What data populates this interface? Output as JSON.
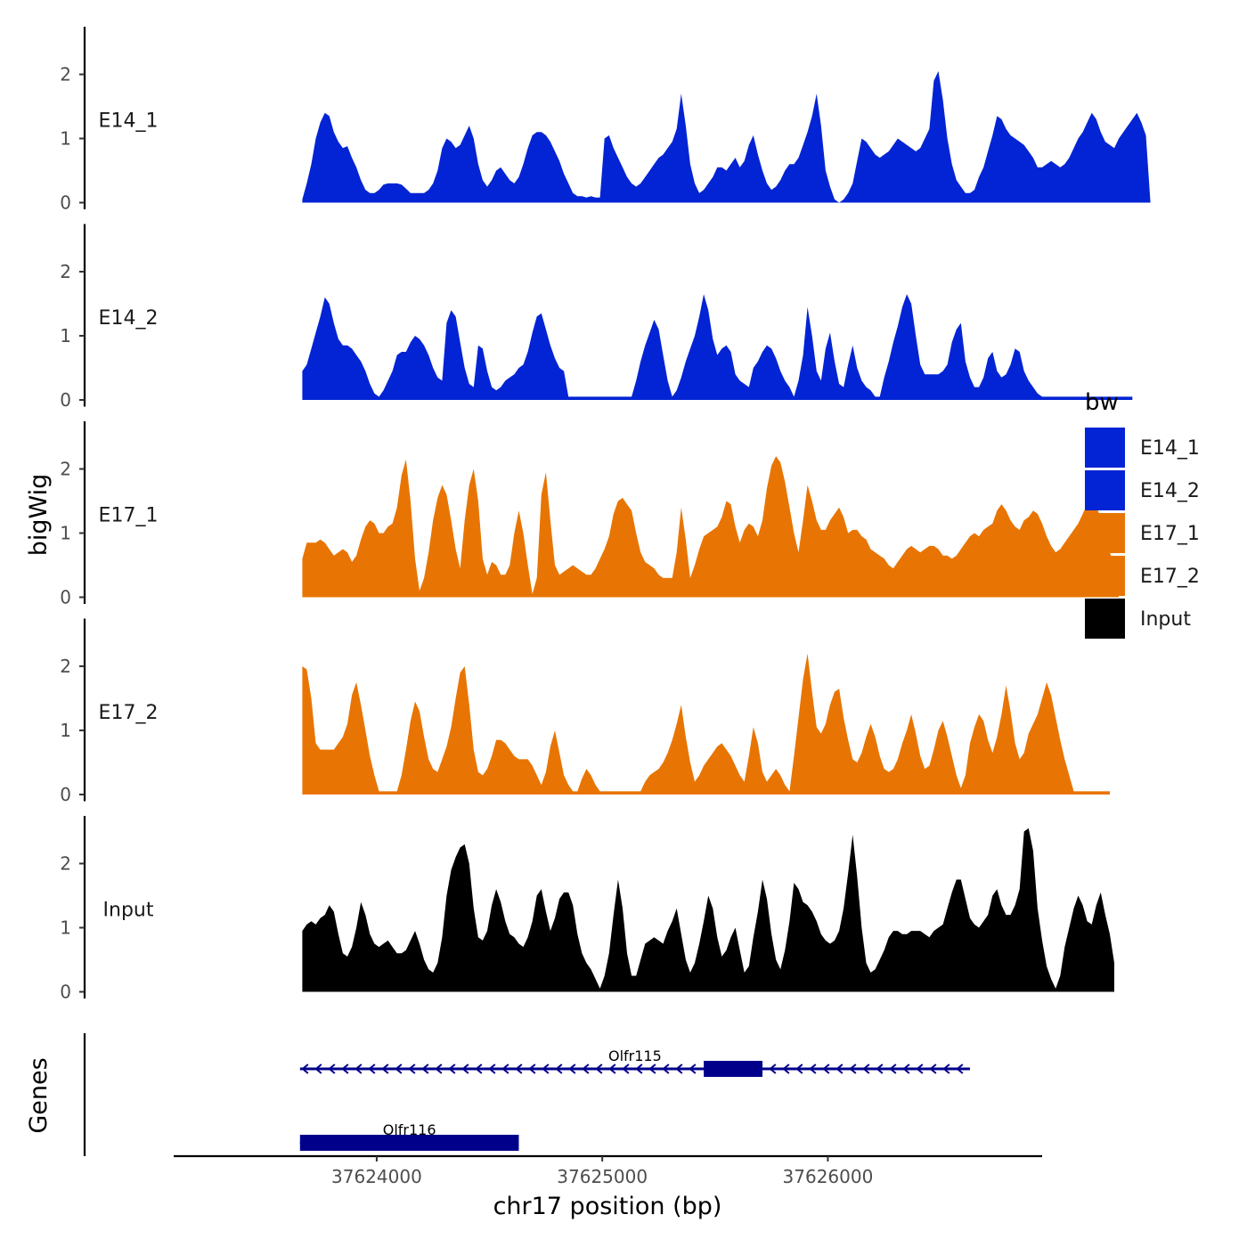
{
  "chart_data": {
    "type": "area",
    "title": "",
    "ylabel": "bigWig",
    "xlabel": "chr17 position (bp)",
    "xlim": [
      37623100,
      37626950
    ],
    "x_start": 37623670,
    "x_step": 20,
    "ylim": [
      0,
      2.7
    ],
    "yticks": [
      0,
      1,
      2
    ],
    "xticks": [
      37624000,
      37625000,
      37626000
    ],
    "xtick_labels": [
      "37624000",
      "37625000",
      "37626000"
    ],
    "legend": {
      "title": "bw",
      "position": "right",
      "entries": [
        {
          "label": "E14_1",
          "color": "#0324d4"
        },
        {
          "label": "E14_2",
          "color": "#0324d4"
        },
        {
          "label": "E17_1",
          "color": "#e87503"
        },
        {
          "label": "E17_2",
          "color": "#e87503"
        },
        {
          "label": "Input",
          "color": "#000000"
        }
      ]
    },
    "series": [
      {
        "name": "E14_1",
        "color": "#0324d4",
        "values": [
          0.05,
          0.3,
          0.6,
          1.0,
          1.25,
          1.4,
          1.35,
          1.1,
          0.95,
          0.85,
          0.88,
          0.7,
          0.55,
          0.35,
          0.2,
          0.15,
          0.15,
          0.2,
          0.28,
          0.3,
          0.3,
          0.3,
          0.28,
          0.22,
          0.15,
          0.15,
          0.15,
          0.15,
          0.2,
          0.3,
          0.5,
          0.85,
          1.0,
          0.95,
          0.85,
          0.9,
          1.05,
          1.2,
          1.0,
          0.6,
          0.35,
          0.25,
          0.35,
          0.5,
          0.55,
          0.45,
          0.35,
          0.3,
          0.4,
          0.6,
          0.85,
          1.05,
          1.1,
          1.1,
          1.05,
          0.95,
          0.8,
          0.65,
          0.45,
          0.3,
          0.15,
          0.1,
          0.1,
          0.08,
          0.1,
          0.08,
          0.08,
          1.0,
          1.05,
          0.85,
          0.7,
          0.55,
          0.4,
          0.3,
          0.25,
          0.3,
          0.4,
          0.5,
          0.6,
          0.7,
          0.75,
          0.85,
          0.95,
          1.15,
          1.7,
          1.2,
          0.6,
          0.3,
          0.15,
          0.2,
          0.3,
          0.4,
          0.55,
          0.55,
          0.5,
          0.6,
          0.7,
          0.55,
          0.65,
          0.9,
          1.05,
          0.75,
          0.5,
          0.3,
          0.2,
          0.25,
          0.35,
          0.5,
          0.6,
          0.6,
          0.7,
          0.9,
          1.1,
          1.35,
          1.7,
          1.2,
          0.5,
          0.25,
          0.05,
          0.0,
          0.05,
          0.15,
          0.3,
          0.65,
          1.0,
          0.95,
          0.85,
          0.75,
          0.7,
          0.75,
          0.8,
          0.9,
          1.0,
          0.95,
          0.9,
          0.85,
          0.8,
          0.85,
          1.0,
          1.15,
          1.9,
          2.05,
          1.6,
          1.0,
          0.6,
          0.35,
          0.25,
          0.15,
          0.15,
          0.2,
          0.4,
          0.55,
          0.8,
          1.05,
          1.35,
          1.3,
          1.15,
          1.05,
          1.0,
          0.95,
          0.9,
          0.8,
          0.7,
          0.55,
          0.55,
          0.6,
          0.65,
          0.6,
          0.55,
          0.6,
          0.7,
          0.85,
          1.0,
          1.1,
          1.25,
          1.4,
          1.3,
          1.1,
          0.95,
          0.9,
          0.85,
          1.0,
          1.1,
          1.2,
          1.3,
          1.4,
          1.25,
          1.05,
          0.0
        ]
      },
      {
        "name": "E14_2",
        "color": "#0324d4",
        "values": [
          0.45,
          0.55,
          0.8,
          1.05,
          1.3,
          1.6,
          1.5,
          1.2,
          0.95,
          0.85,
          0.85,
          0.8,
          0.7,
          0.6,
          0.45,
          0.25,
          0.1,
          0.05,
          0.15,
          0.3,
          0.45,
          0.7,
          0.75,
          0.75,
          0.9,
          1.0,
          0.95,
          0.85,
          0.7,
          0.5,
          0.35,
          0.3,
          1.2,
          1.4,
          1.3,
          0.9,
          0.5,
          0.25,
          0.2,
          0.85,
          0.8,
          0.45,
          0.2,
          0.15,
          0.2,
          0.3,
          0.35,
          0.4,
          0.5,
          0.55,
          0.75,
          1.05,
          1.3,
          1.35,
          1.1,
          0.85,
          0.65,
          0.5,
          0.45,
          0.05,
          0.05,
          0.05,
          0.05,
          0.05,
          0.05,
          0.05,
          0.05,
          0.05,
          0.05,
          0.05,
          0.05,
          0.05,
          0.05,
          0.05,
          0.3,
          0.6,
          0.85,
          1.05,
          1.25,
          1.1,
          0.7,
          0.3,
          0.05,
          0.15,
          0.35,
          0.6,
          0.8,
          1.0,
          1.3,
          1.65,
          1.4,
          0.95,
          0.7,
          0.8,
          0.85,
          0.75,
          0.4,
          0.3,
          0.25,
          0.2,
          0.5,
          0.6,
          0.75,
          0.85,
          0.8,
          0.65,
          0.45,
          0.3,
          0.2,
          0.05,
          0.3,
          0.7,
          1.45,
          1.0,
          0.45,
          0.3,
          0.8,
          1.05,
          0.6,
          0.25,
          0.2,
          0.55,
          0.85,
          0.5,
          0.3,
          0.2,
          0.15,
          0.05,
          0.05,
          0.35,
          0.6,
          0.9,
          1.15,
          1.45,
          1.65,
          1.5,
          1.0,
          0.55,
          0.4,
          0.4,
          0.4,
          0.4,
          0.45,
          0.55,
          0.9,
          1.1,
          1.2,
          0.6,
          0.35,
          0.2,
          0.2,
          0.35,
          0.65,
          0.75,
          0.45,
          0.35,
          0.4,
          0.55,
          0.8,
          0.75,
          0.45,
          0.3,
          0.2,
          0.1,
          0.05,
          0.05,
          0.05,
          0.05,
          0.05,
          0.05,
          0.05,
          0.05,
          0.05,
          0.05,
          0.05,
          0.05,
          0.05,
          0.05,
          0.05,
          0.05,
          0.05,
          0.05,
          0.05,
          0.05,
          0.05
        ]
      },
      {
        "name": "E17_1",
        "color": "#e87503",
        "values": [
          0.6,
          0.85,
          0.85,
          0.85,
          0.9,
          0.85,
          0.75,
          0.65,
          0.7,
          0.75,
          0.7,
          0.55,
          0.65,
          0.9,
          1.1,
          1.2,
          1.15,
          1.0,
          1.0,
          1.1,
          1.15,
          1.4,
          1.9,
          2.15,
          1.5,
          0.6,
          0.1,
          0.3,
          0.7,
          1.2,
          1.55,
          1.75,
          1.6,
          1.2,
          0.75,
          0.45,
          1.2,
          1.75,
          2.0,
          1.5,
          0.6,
          0.35,
          0.55,
          0.5,
          0.35,
          0.35,
          0.5,
          1.0,
          1.35,
          1.0,
          0.5,
          0.05,
          0.3,
          1.6,
          1.95,
          1.2,
          0.5,
          0.35,
          0.4,
          0.45,
          0.5,
          0.45,
          0.4,
          0.35,
          0.35,
          0.45,
          0.6,
          0.75,
          0.95,
          1.3,
          1.5,
          1.55,
          1.45,
          1.35,
          1.0,
          0.7,
          0.55,
          0.5,
          0.45,
          0.35,
          0.3,
          0.3,
          0.3,
          0.7,
          1.4,
          0.9,
          0.3,
          0.5,
          0.75,
          0.95,
          1.0,
          1.05,
          1.1,
          1.25,
          1.5,
          1.45,
          1.1,
          0.85,
          1.05,
          1.15,
          1.1,
          0.95,
          1.2,
          1.7,
          2.05,
          2.2,
          2.1,
          1.8,
          1.4,
          1.0,
          0.7,
          1.2,
          1.75,
          1.5,
          1.2,
          1.05,
          1.05,
          1.2,
          1.3,
          1.4,
          1.25,
          1.0,
          1.05,
          1.05,
          0.95,
          0.9,
          0.75,
          0.7,
          0.65,
          0.6,
          0.5,
          0.45,
          0.55,
          0.65,
          0.75,
          0.8,
          0.75,
          0.7,
          0.75,
          0.8,
          0.8,
          0.75,
          0.65,
          0.65,
          0.6,
          0.65,
          0.75,
          0.85,
          0.95,
          1.0,
          0.95,
          1.05,
          1.1,
          1.15,
          1.35,
          1.45,
          1.35,
          1.2,
          1.1,
          1.05,
          1.2,
          1.25,
          1.35,
          1.3,
          1.15,
          0.95,
          0.8,
          0.7,
          0.75,
          0.85,
          0.95,
          1.05,
          1.15,
          1.3,
          1.45,
          1.5,
          1.45,
          1.2,
          0.95,
          0.7,
          0.5,
          0.0
        ]
      },
      {
        "name": "E17_2",
        "color": "#e87503",
        "values": [
          2.0,
          1.95,
          1.5,
          0.8,
          0.7,
          0.7,
          0.7,
          0.7,
          0.8,
          0.9,
          1.1,
          1.55,
          1.75,
          1.4,
          1.0,
          0.6,
          0.3,
          0.05,
          0.05,
          0.05,
          0.05,
          0.05,
          0.3,
          0.7,
          1.15,
          1.45,
          1.3,
          0.9,
          0.55,
          0.4,
          0.35,
          0.55,
          0.75,
          1.05,
          1.5,
          1.9,
          2.0,
          1.4,
          0.7,
          0.35,
          0.3,
          0.4,
          0.6,
          0.85,
          0.85,
          0.8,
          0.7,
          0.6,
          0.55,
          0.55,
          0.55,
          0.45,
          0.3,
          0.15,
          0.35,
          0.75,
          1.0,
          0.65,
          0.3,
          0.15,
          0.05,
          0.05,
          0.25,
          0.4,
          0.3,
          0.15,
          0.05,
          0.05,
          0.05,
          0.05,
          0.05,
          0.05,
          0.05,
          0.05,
          0.05,
          0.05,
          0.2,
          0.3,
          0.35,
          0.4,
          0.5,
          0.65,
          0.85,
          1.1,
          1.4,
          0.9,
          0.5,
          0.2,
          0.3,
          0.45,
          0.55,
          0.65,
          0.75,
          0.8,
          0.7,
          0.6,
          0.45,
          0.3,
          0.2,
          0.6,
          1.05,
          0.8,
          0.35,
          0.2,
          0.3,
          0.4,
          0.3,
          0.15,
          0.05,
          0.6,
          1.2,
          1.8,
          2.2,
          1.6,
          1.05,
          0.95,
          1.1,
          1.4,
          1.6,
          1.65,
          1.2,
          0.85,
          0.55,
          0.5,
          0.65,
          0.9,
          1.1,
          0.9,
          0.6,
          0.4,
          0.35,
          0.4,
          0.55,
          0.8,
          1.0,
          1.25,
          0.95,
          0.6,
          0.4,
          0.45,
          0.7,
          1.0,
          1.15,
          0.9,
          0.6,
          0.3,
          0.1,
          0.3,
          0.8,
          1.05,
          1.25,
          1.15,
          0.85,
          0.65,
          0.9,
          1.25,
          1.7,
          1.3,
          0.8,
          0.55,
          0.65,
          0.95,
          1.1,
          1.25,
          1.5,
          1.75,
          1.55,
          1.2,
          0.85,
          0.55,
          0.3,
          0.05,
          0.05,
          0.05,
          0.05,
          0.05,
          0.05,
          0.05,
          0.05,
          0.05
        ]
      },
      {
        "name": "Input",
        "color": "#000000",
        "values": [
          0.95,
          1.05,
          1.1,
          1.05,
          1.15,
          1.2,
          1.35,
          1.25,
          0.9,
          0.6,
          0.55,
          0.7,
          1.0,
          1.4,
          1.2,
          0.9,
          0.75,
          0.7,
          0.75,
          0.8,
          0.7,
          0.6,
          0.6,
          0.65,
          0.8,
          0.95,
          0.75,
          0.5,
          0.35,
          0.3,
          0.45,
          0.85,
          1.5,
          1.9,
          2.1,
          2.25,
          2.3,
          2.0,
          1.3,
          0.85,
          0.8,
          0.95,
          1.35,
          1.6,
          1.4,
          1.1,
          0.9,
          0.85,
          0.75,
          0.7,
          0.85,
          1.1,
          1.5,
          1.6,
          1.25,
          0.95,
          1.15,
          1.45,
          1.55,
          1.55,
          1.35,
          0.9,
          0.6,
          0.45,
          0.35,
          0.2,
          0.05,
          0.25,
          0.6,
          1.2,
          1.75,
          1.3,
          0.6,
          0.25,
          0.25,
          0.5,
          0.75,
          0.8,
          0.85,
          0.8,
          0.75,
          0.95,
          1.1,
          1.3,
          0.9,
          0.5,
          0.3,
          0.45,
          0.75,
          1.1,
          1.5,
          1.3,
          0.85,
          0.55,
          0.65,
          0.85,
          1.0,
          0.65,
          0.3,
          0.4,
          0.85,
          1.25,
          1.75,
          1.45,
          0.9,
          0.5,
          0.35,
          0.65,
          1.1,
          1.7,
          1.6,
          1.4,
          1.35,
          1.25,
          1.1,
          0.9,
          0.8,
          0.75,
          0.8,
          0.95,
          1.3,
          1.85,
          2.45,
          1.8,
          1.0,
          0.45,
          0.3,
          0.35,
          0.5,
          0.65,
          0.85,
          0.95,
          0.95,
          0.9,
          0.9,
          0.95,
          0.95,
          0.95,
          0.9,
          0.85,
          0.95,
          1.0,
          1.05,
          1.3,
          1.55,
          1.75,
          1.75,
          1.45,
          1.15,
          1.05,
          1.0,
          1.1,
          1.2,
          1.5,
          1.6,
          1.35,
          1.2,
          1.2,
          1.35,
          1.6,
          2.5,
          2.55,
          2.2,
          1.3,
          0.8,
          0.4,
          0.2,
          0.05,
          0.25,
          0.7,
          1.0,
          1.3,
          1.5,
          1.35,
          1.1,
          1.05,
          1.35,
          1.55,
          1.2,
          0.9,
          0.45
        ]
      }
    ],
    "genes": [
      {
        "name": "Olfr115",
        "start": 37623660,
        "end": 37626630,
        "strand": "-",
        "exon_start": 37625450,
        "exon_end": 37625710
      },
      {
        "name": "Olfr116",
        "start": 37623660,
        "end": 37624630,
        "strand": "-",
        "exon_start": 37623660,
        "exon_end": 37624630
      }
    ],
    "genes_label": "Genes"
  }
}
